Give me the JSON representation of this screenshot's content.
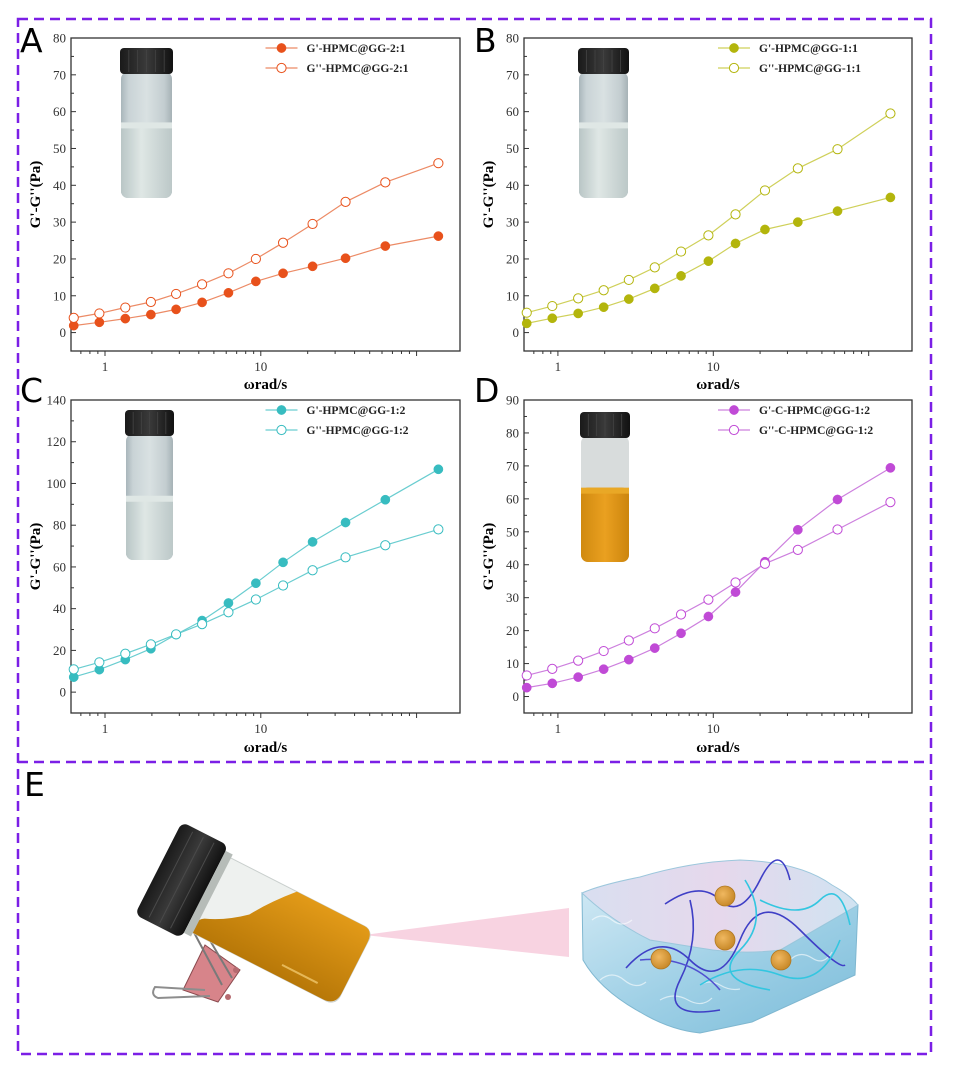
{
  "figure": {
    "panels": [
      "A",
      "B",
      "C",
      "D",
      "E"
    ],
    "border_color": "#7b1fe6",
    "panel_e": {
      "letter": "E",
      "left_image": "tilted-vial-with-orange-gel-on-binder-clip",
      "right_image": "hydrogel-network-illustration",
      "beam_color": "#f8d3e1"
    }
  },
  "chart_data": [
    {
      "panel": "A",
      "type": "line",
      "xscale": "log",
      "xlabel": "ωrad/s",
      "ylabel": "G'-G''(Pa)",
      "xlim": [
        0.605,
        190
      ],
      "ylim": [
        -5,
        80
      ],
      "xticks": [
        1,
        10
      ],
      "xtick_labels": [
        "1",
        "10"
      ],
      "yticks": [
        0,
        10,
        20,
        30,
        40,
        50,
        60,
        70,
        80
      ],
      "ytick_labels": [
        "0",
        "10",
        "20",
        "30",
        "40",
        "50",
        "60",
        "70",
        "80"
      ],
      "legend_position": "top-right",
      "inset": "vial-white-translucent",
      "x": [
        0.63,
        0.92,
        1.35,
        1.97,
        2.86,
        4.2,
        6.2,
        9.3,
        13.9,
        21.5,
        35,
        63,
        138
      ],
      "series": [
        {
          "name": "G'-HPMC@GG-2:1",
          "marker": "filled-circle",
          "color": "#e8511b",
          "line_color": "#ec8b66",
          "values": [
            1.9,
            2.8,
            3.8,
            4.9,
            6.3,
            8.2,
            10.8,
            13.9,
            16.1,
            18.0,
            20.2,
            23.5,
            26.2
          ]
        },
        {
          "name": "G''-HPMC@GG-2:1",
          "marker": "open-circle",
          "color": "#e8511b",
          "line_color": "#ec8b66",
          "values": [
            4.0,
            5.2,
            6.8,
            8.3,
            10.5,
            13.1,
            16.1,
            20.0,
            24.4,
            29.5,
            35.5,
            40.8,
            46.0
          ]
        }
      ]
    },
    {
      "panel": "B",
      "type": "line",
      "xscale": "log",
      "xlabel": "ωrad/s",
      "ylabel": "G'-G''(Pa)",
      "xlim": [
        0.605,
        190
      ],
      "ylim": [
        -5,
        80
      ],
      "xticks": [
        1,
        10
      ],
      "xtick_labels": [
        "1",
        "10"
      ],
      "yticks": [
        0,
        10,
        20,
        30,
        40,
        50,
        60,
        70,
        80
      ],
      "ytick_labels": [
        "0",
        "10",
        "20",
        "30",
        "40",
        "50",
        "60",
        "70",
        "80"
      ],
      "legend_position": "top-right",
      "inset": "vial-white-translucent",
      "x": [
        0.63,
        0.92,
        1.35,
        1.97,
        2.86,
        4.2,
        6.2,
        9.3,
        13.9,
        21.5,
        35,
        63,
        138
      ],
      "series": [
        {
          "name": "G'-HPMC@GG-1:1",
          "marker": "filled-circle",
          "color": "#b3b50c",
          "line_color": "#cfd05a",
          "values": [
            2.5,
            3.9,
            5.2,
            6.9,
            9.1,
            12.0,
            15.4,
            19.4,
            24.2,
            28.0,
            30.0,
            33.0,
            36.7
          ]
        },
        {
          "name": "G''-HPMC@GG-1:1",
          "marker": "open-circle",
          "color": "#b3b50c",
          "line_color": "#cfd05a",
          "values": [
            5.4,
            7.2,
            9.3,
            11.5,
            14.3,
            17.7,
            22.0,
            26.4,
            32.1,
            38.6,
            44.6,
            49.8,
            59.5
          ]
        }
      ]
    },
    {
      "panel": "C",
      "type": "line",
      "xscale": "log",
      "xlabel": "ωrad/s",
      "ylabel": "G'-G''(Pa)",
      "xlim": [
        0.605,
        190
      ],
      "ylim": [
        -10,
        140
      ],
      "xticks": [
        1,
        10
      ],
      "xtick_labels": [
        "1",
        "10"
      ],
      "yticks": [
        0,
        20,
        40,
        60,
        80,
        100,
        120,
        140
      ],
      "ytick_labels": [
        "0",
        "20",
        "40",
        "60",
        "80",
        "100",
        "120",
        "140"
      ],
      "legend_position": "top-right",
      "inset": "vial-white-opaque",
      "x": [
        0.63,
        0.92,
        1.35,
        1.97,
        2.86,
        4.2,
        6.2,
        9.3,
        13.9,
        21.5,
        35,
        63,
        138
      ],
      "series": [
        {
          "name": "G'-HPMC@GG-1:2",
          "marker": "filled-circle",
          "color": "#37bcc0",
          "line_color": "#6acdd0",
          "values": [
            7.2,
            10.8,
            15.6,
            20.8,
            27.6,
            34.3,
            42.7,
            52.2,
            62.2,
            72.0,
            81.3,
            92.2,
            106.8
          ]
        },
        {
          "name": "G''-HPMC@GG-1:2",
          "marker": "open-circle",
          "color": "#37bcc0",
          "line_color": "#6acdd0",
          "values": [
            10.9,
            14.3,
            18.4,
            22.9,
            27.7,
            32.6,
            38.3,
            44.4,
            51.1,
            58.4,
            64.6,
            70.4,
            78.0
          ]
        }
      ]
    },
    {
      "panel": "D",
      "type": "line",
      "xscale": "log",
      "xlabel": "ωrad/s",
      "ylabel": "G'-G''(Pa)",
      "xlim": [
        0.605,
        190
      ],
      "ylim": [
        -5,
        90
      ],
      "xticks": [
        1,
        10
      ],
      "xtick_labels": [
        "1",
        "10"
      ],
      "yticks": [
        0,
        10,
        20,
        30,
        40,
        50,
        60,
        70,
        80,
        90
      ],
      "ytick_labels": [
        "0",
        "10",
        "20",
        "30",
        "40",
        "50",
        "60",
        "70",
        "80",
        "90"
      ],
      "legend_position": "top-right",
      "inset": "vial-orange",
      "x": [
        0.63,
        0.92,
        1.35,
        1.97,
        2.86,
        4.2,
        6.2,
        9.3,
        13.9,
        21.5,
        35,
        63,
        138
      ],
      "series": [
        {
          "name": "G'-C-HPMC@GG-1:2",
          "marker": "filled-circle",
          "color": "#c04ad6",
          "line_color": "#cd80de",
          "values": [
            2.7,
            4.0,
            5.9,
            8.3,
            11.2,
            14.7,
            19.2,
            24.3,
            31.7,
            40.9,
            50.6,
            59.8,
            69.4
          ]
        },
        {
          "name": "G''-C-HPMC@GG-1:2",
          "marker": "open-circle",
          "color": "#c04ad6",
          "line_color": "#cd80de",
          "values": [
            6.4,
            8.4,
            10.9,
            13.8,
            17.0,
            20.7,
            24.9,
            29.4,
            34.6,
            40.3,
            44.5,
            50.7,
            59.0
          ]
        }
      ]
    }
  ]
}
